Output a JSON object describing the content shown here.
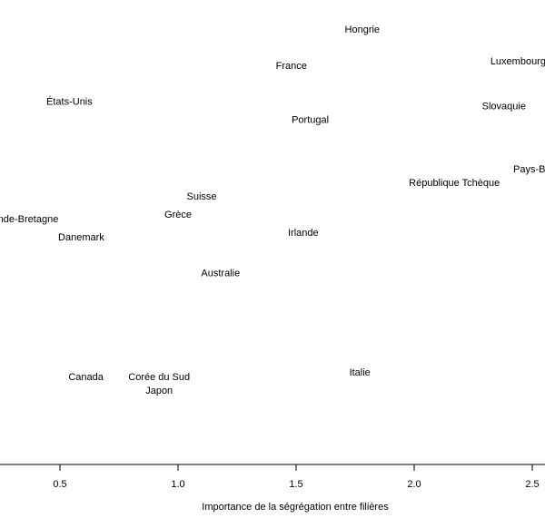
{
  "chart_data": {
    "type": "scatter",
    "title": "",
    "xlabel": "Importance de la ségrégation entre filières",
    "ylabel": "",
    "xlim": [
      0.3,
      2.55
    ],
    "x_ticks": [
      0.5,
      1.0,
      1.5,
      2.0,
      2.5
    ],
    "x_tick_labels": [
      "0.5",
      "1.0",
      "1.5",
      "2.0",
      "2.5"
    ],
    "grid": false,
    "points": [
      {
        "label": "Hongrie",
        "x": 1.78,
        "y": 0.95
      },
      {
        "label": "France",
        "x": 1.48,
        "y": 0.87
      },
      {
        "label": "Luxembourg",
        "x": 2.44,
        "y": 0.88
      },
      {
        "label": "États-Unis",
        "x": 0.54,
        "y": 0.79
      },
      {
        "label": "Slovaquie",
        "x": 2.38,
        "y": 0.78
      },
      {
        "label": "Portugal",
        "x": 1.56,
        "y": 0.75
      },
      {
        "label": "Pays-Bas",
        "x": 2.51,
        "y": 0.64
      },
      {
        "label": "République Tchèque",
        "x": 2.17,
        "y": 0.61
      },
      {
        "label": "Suisse",
        "x": 1.1,
        "y": 0.58
      },
      {
        "label": "Grande-Bretagne",
        "x": 0.33,
        "y": 0.53
      },
      {
        "label": "Grèce",
        "x": 1.0,
        "y": 0.54
      },
      {
        "label": "Irlande",
        "x": 1.53,
        "y": 0.5
      },
      {
        "label": "Danemark",
        "x": 0.59,
        "y": 0.49
      },
      {
        "label": "Australie",
        "x": 1.18,
        "y": 0.41
      },
      {
        "label": "Italie",
        "x": 1.77,
        "y": 0.19
      },
      {
        "label": "Canada",
        "x": 0.61,
        "y": 0.18
      },
      {
        "label": "Corée du Sud",
        "x": 0.92,
        "y": 0.18
      },
      {
        "label": "Japon",
        "x": 0.92,
        "y": 0.15
      }
    ]
  }
}
